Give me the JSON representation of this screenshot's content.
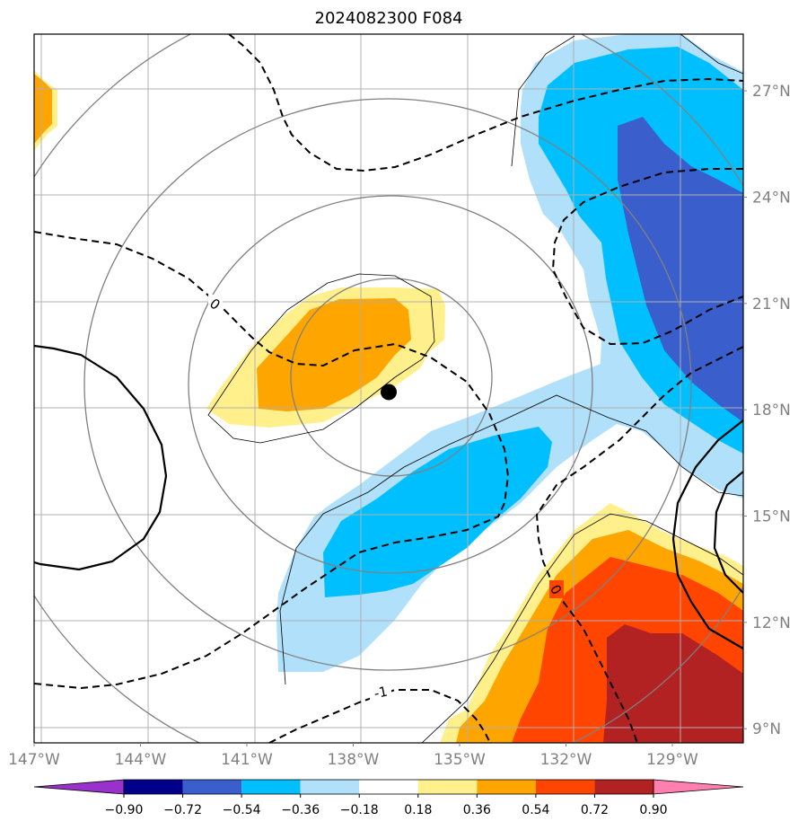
{
  "chart_data": {
    "type": "filled-contour map",
    "title": "2024082300 F084",
    "x_tick_labels": [
      "147°W",
      "144°W",
      "141°W",
      "138°W",
      "135°W",
      "132°W",
      "129°W"
    ],
    "y_tick_labels": [
      "9°N",
      "12°N",
      "15°N",
      "18°N",
      "21°N",
      "24°N",
      "27°N"
    ],
    "lon_range": [
      -147.0,
      -127.0
    ],
    "lat_range": [
      8.6,
      28.6
    ],
    "grid": true,
    "marker": {
      "lon": -137.0,
      "lat": 18.5,
      "color": "#000000"
    },
    "colorbar": {
      "levels": [
        "−0.90",
        "−0.72",
        "−0.54",
        "−0.36",
        "−0.18",
        "0.18",
        "0.36",
        "0.54",
        "0.72",
        "0.90"
      ],
      "colors": [
        "#9932cc",
        "#00008b",
        "#3a5fcd",
        "#00bfff",
        "#b0e0fa",
        "#ffffff",
        "#fff08c",
        "#ffa500",
        "#ff4500",
        "#b22222",
        "#ff7fb0"
      ],
      "extend": "both"
    },
    "contour_labels": [
      "0",
      "0",
      "-1"
    ]
  }
}
